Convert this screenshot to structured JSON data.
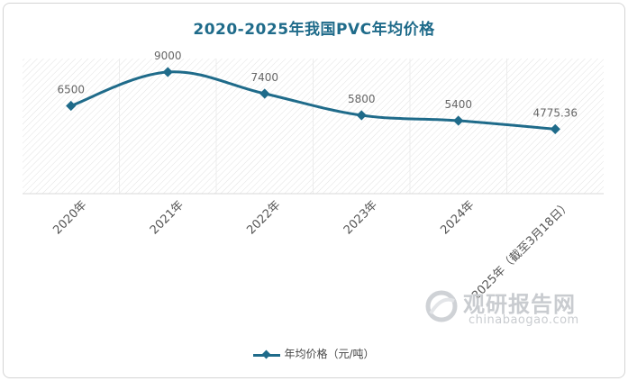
{
  "chart_data": {
    "type": "line",
    "title": "2020-2025年我国PVC年均价格",
    "categories": [
      "2020年",
      "2021年",
      "2022年",
      "2023年",
      "2024年",
      "2025年（截至3月18日）"
    ],
    "series": [
      {
        "name": "年均价格（元/吨）",
        "values": [
          6500,
          9000,
          7400,
          5800,
          5400,
          4775.36
        ]
      }
    ],
    "data_labels": [
      "6500",
      "9000",
      "7400",
      "5800",
      "5400",
      "4775.36"
    ],
    "xlabel": "",
    "ylabel": "",
    "ylim": [
      0,
      10000
    ],
    "grid": "hatched-background",
    "legend": "bottom",
    "smooth": true,
    "colors": {
      "line": "#1f6b8a",
      "title": "#1f6b8a",
      "label": "#666666"
    }
  },
  "watermark": {
    "text": "观研报告网",
    "sub": "chinabaogao.com"
  }
}
